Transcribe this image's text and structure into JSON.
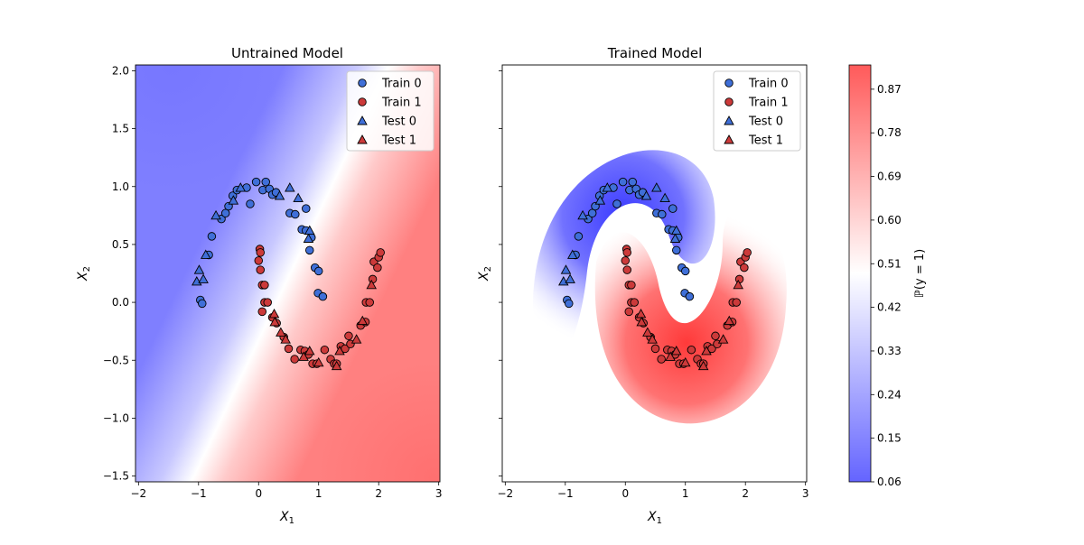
{
  "chart_data": [
    {
      "type": "scatter",
      "title": "Untrained Model",
      "xlabel": "X_1",
      "ylabel": "X_2",
      "xlim": [
        -2.05,
        3.02
      ],
      "ylim": [
        -1.55,
        2.05
      ],
      "xticks": [
        -2,
        -1,
        0,
        1,
        2,
        3
      ],
      "yticks": [
        -1.5,
        -1.0,
        -0.5,
        0.0,
        0.5,
        1.0,
        1.5,
        2.0
      ],
      "xtick_labels": [
        "−2",
        "−1",
        "0",
        "1",
        "2",
        "3"
      ],
      "ytick_labels": [
        "−1.5",
        "−1.0",
        "−0.5",
        "0.0",
        "0.5",
        "1.0",
        "1.5",
        "2.0"
      ],
      "background": "probability contour, roughly linear boundary from lower-left to upper-right (blue upper-left, red lower-right)",
      "legend": {
        "placement": "top-right",
        "entries": [
          {
            "label": "Train 0",
            "marker": "circle",
            "color": "#3f6fd8"
          },
          {
            "label": "Train 1",
            "marker": "circle",
            "color": "#cc3a3a"
          },
          {
            "label": "Test 0",
            "marker": "triangle",
            "color": "#3f6fd8"
          },
          {
            "label": "Test 1",
            "marker": "triangle",
            "color": "#cc3a3a"
          }
        ]
      }
    },
    {
      "type": "scatter",
      "title": "Trained Model",
      "xlabel": "X_1",
      "ylabel": "X_2",
      "xlim": [
        -2.05,
        3.02
      ],
      "ylim": [
        -1.55,
        2.05
      ],
      "xticks": [
        -2,
        -1,
        0,
        1,
        2,
        3
      ],
      "xtick_labels": [
        "−2",
        "−1",
        "0",
        "1",
        "2",
        "3"
      ],
      "yticks": [
        -1.5,
        -1.0,
        -0.5,
        0.0,
        0.5,
        1.0,
        1.5,
        2.0
      ],
      "ytick_labels": [],
      "background": "probability contour, curved boundary separating the two moons (blue around upper moon, red around lower moon)",
      "legend": {
        "placement": "top-right",
        "entries": [
          {
            "label": "Train 0",
            "marker": "circle",
            "color": "#3f6fd8"
          },
          {
            "label": "Train 1",
            "marker": "circle",
            "color": "#cc3a3a"
          },
          {
            "label": "Test 0",
            "marker": "triangle",
            "color": "#3f6fd8"
          },
          {
            "label": "Test 1",
            "marker": "triangle",
            "color": "#cc3a3a"
          }
        ]
      },
      "colorbar": {
        "label": "ℙ(y = 1)",
        "range": [
          0.06,
          0.92
        ],
        "ticks": [
          0.06,
          0.15,
          0.24,
          0.33,
          0.42,
          0.51,
          0.6,
          0.69,
          0.78,
          0.87
        ],
        "tick_labels": [
          "0.06",
          "0.15",
          "0.24",
          "0.33",
          "0.42",
          "0.51",
          "0.60",
          "0.69",
          "0.78",
          "0.87"
        ],
        "colormap": "bwr (blue to white to red)"
      }
    }
  ],
  "points": {
    "train0": [
      [
        -0.97,
        0.02
      ],
      [
        -0.94,
        -0.01
      ],
      [
        -0.83,
        0.41
      ],
      [
        -0.78,
        0.57
      ],
      [
        -0.62,
        0.72
      ],
      [
        -0.55,
        0.77
      ],
      [
        -0.5,
        0.83
      ],
      [
        -0.43,
        0.92
      ],
      [
        -0.36,
        0.97
      ],
      [
        -0.2,
        0.99
      ],
      [
        -0.14,
        0.85
      ],
      [
        -0.04,
        1.04
      ],
      [
        0.07,
        0.97
      ],
      [
        0.12,
        1.04
      ],
      [
        0.18,
        0.98
      ],
      [
        0.23,
        0.93
      ],
      [
        0.29,
        0.95
      ],
      [
        0.52,
        0.77
      ],
      [
        0.61,
        0.76
      ],
      [
        0.72,
        0.63
      ],
      [
        0.79,
        0.81
      ],
      [
        0.79,
        0.62
      ],
      [
        0.85,
        0.45
      ],
      [
        0.88,
        0.56
      ],
      [
        0.94,
        0.3
      ],
      [
        0.99,
        0.08
      ],
      [
        1.07,
        0.05
      ],
      [
        1.0,
        0.27
      ]
    ],
    "train1": [
      [
        0.02,
        0.46
      ],
      [
        0.03,
        0.43
      ],
      [
        0.0,
        0.36
      ],
      [
        0.03,
        0.28
      ],
      [
        0.06,
        0.15
      ],
      [
        0.1,
        0.15
      ],
      [
        0.1,
        0.0
      ],
      [
        0.06,
        -0.08
      ],
      [
        0.15,
        0.0
      ],
      [
        0.23,
        -0.13
      ],
      [
        0.3,
        -0.18
      ],
      [
        0.42,
        -0.3
      ],
      [
        0.5,
        -0.4
      ],
      [
        0.6,
        -0.49
      ],
      [
        0.7,
        -0.41
      ],
      [
        0.77,
        -0.42
      ],
      [
        0.83,
        -0.45
      ],
      [
        0.9,
        -0.53
      ],
      [
        0.97,
        -0.53
      ],
      [
        1.1,
        -0.41
      ],
      [
        1.2,
        -0.49
      ],
      [
        1.26,
        -0.53
      ],
      [
        1.3,
        -0.53
      ],
      [
        1.37,
        -0.38
      ],
      [
        1.44,
        -0.4
      ],
      [
        1.5,
        -0.29
      ],
      [
        1.53,
        -0.36
      ],
      [
        1.7,
        -0.2
      ],
      [
        1.78,
        -0.17
      ],
      [
        1.79,
        0.0
      ],
      [
        1.85,
        0.0
      ],
      [
        1.9,
        0.2
      ],
      [
        1.92,
        0.35
      ],
      [
        1.98,
        0.3
      ],
      [
        2.0,
        0.39
      ],
      [
        2.03,
        0.43
      ]
    ],
    "test0": [
      [
        -1.03,
        0.18
      ],
      [
        -0.99,
        0.28
      ],
      [
        -0.92,
        0.2
      ],
      [
        -0.88,
        0.41
      ],
      [
        -0.71,
        0.75
      ],
      [
        -0.42,
        0.88
      ],
      [
        -0.3,
        0.99
      ],
      [
        0.35,
        0.92
      ],
      [
        0.52,
        0.99
      ],
      [
        0.66,
        0.9
      ],
      [
        0.83,
        0.55
      ],
      [
        0.85,
        0.62
      ]
    ],
    "test1": [
      [
        0.26,
        -0.1
      ],
      [
        0.27,
        -0.17
      ],
      [
        0.37,
        -0.26
      ],
      [
        0.45,
        -0.32
      ],
      [
        0.75,
        -0.47
      ],
      [
        0.85,
        -0.42
      ],
      [
        1.0,
        -0.52
      ],
      [
        1.3,
        -0.55
      ],
      [
        1.35,
        -0.42
      ],
      [
        1.63,
        -0.32
      ],
      [
        1.73,
        -0.16
      ],
      [
        1.88,
        0.15
      ]
    ]
  }
}
